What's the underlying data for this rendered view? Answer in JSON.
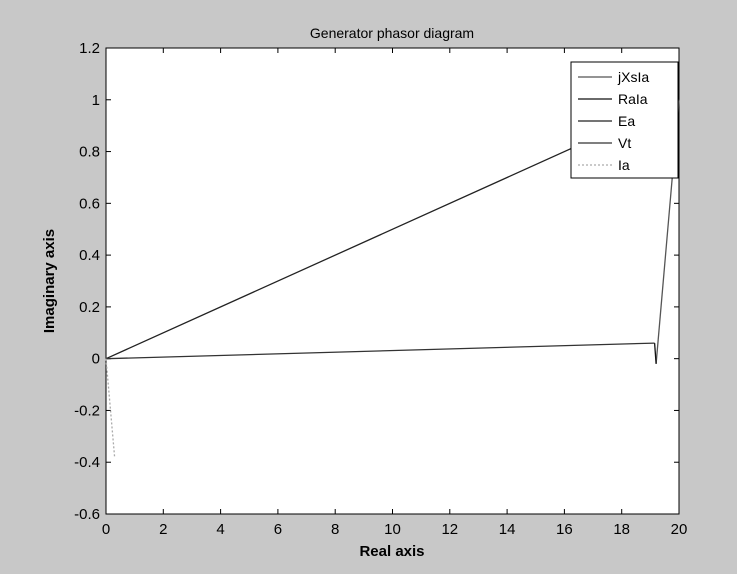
{
  "chart_data": {
    "type": "line",
    "title": "Generator phasor diagram",
    "xlabel": "Real axis",
    "ylabel": "Imaginary axis",
    "xlim": [
      0,
      20
    ],
    "ylim": [
      -0.6,
      1.2
    ],
    "xticks": [
      0,
      2,
      4,
      6,
      8,
      10,
      12,
      14,
      16,
      18,
      20
    ],
    "yticks": [
      -0.6,
      -0.4,
      -0.2,
      0,
      0.2,
      0.4,
      0.6,
      0.8,
      1,
      1.2
    ],
    "xtick_labels": [
      "0",
      "2",
      "4",
      "6",
      "8",
      "10",
      "12",
      "14",
      "16",
      "18",
      "20"
    ],
    "ytick_labels": [
      "-0.6",
      "-0.4",
      "-0.2",
      "0",
      "0.2",
      "0.4",
      "0.6",
      "0.8",
      "1",
      "1.2"
    ],
    "grid": false,
    "legend": "top-right",
    "series": [
      {
        "name": "jXsIa",
        "color": "#555555",
        "x": [
          19.2,
          20.0
        ],
        "y": [
          -0.02,
          1.0
        ]
      },
      {
        "name": "RaIa",
        "color": "#111111",
        "x": [
          19.15,
          19.2
        ],
        "y": [
          0.06,
          -0.02
        ]
      },
      {
        "name": "Ea",
        "color": "#222222",
        "x": [
          0,
          20.0
        ],
        "y": [
          0,
          1.0
        ]
      },
      {
        "name": "Vt",
        "color": "#333333",
        "x": [
          0,
          19.15
        ],
        "y": [
          0,
          0.06
        ]
      },
      {
        "name": "Ia",
        "color": "#aaaaaa",
        "x": [
          0,
          0.3
        ],
        "y": [
          0,
          -0.38
        ]
      }
    ]
  }
}
